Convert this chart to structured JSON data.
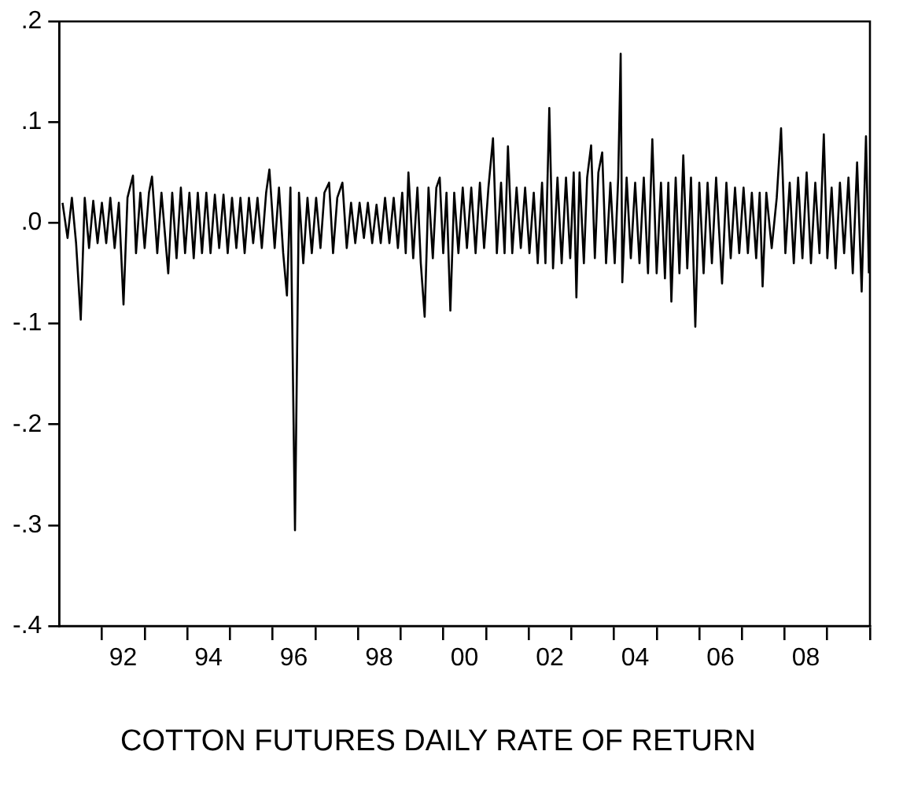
{
  "chart_data": {
    "type": "line",
    "title": "COTTON FUTURES DAILY RATE OF RETURN",
    "xlim": [
      "1991-01-01",
      "2010-01-01"
    ],
    "xticks": [
      {
        "value": "1992-01-01",
        "label": null
      },
      {
        "value": "1992-07-01",
        "label": "92"
      },
      {
        "value": "1993-01-01",
        "label": null
      },
      {
        "value": "1994-01-01",
        "label": null
      },
      {
        "value": "1994-07-01",
        "label": "94"
      },
      {
        "value": "1995-01-01",
        "label": null
      },
      {
        "value": "1996-01-01",
        "label": null
      },
      {
        "value": "1996-07-01",
        "label": "96"
      },
      {
        "value": "1997-01-01",
        "label": null
      },
      {
        "value": "1998-01-01",
        "label": null
      },
      {
        "value": "1998-07-01",
        "label": "98"
      },
      {
        "value": "1999-01-01",
        "label": null
      },
      {
        "value": "2000-01-01",
        "label": null
      },
      {
        "value": "2000-07-01",
        "label": "00"
      },
      {
        "value": "2001-01-01",
        "label": null
      },
      {
        "value": "2002-01-01",
        "label": null
      },
      {
        "value": "2002-07-01",
        "label": "02"
      },
      {
        "value": "2003-01-01",
        "label": null
      },
      {
        "value": "2004-01-01",
        "label": null
      },
      {
        "value": "2004-07-01",
        "label": "04"
      },
      {
        "value": "2005-01-01",
        "label": null
      },
      {
        "value": "2006-01-01",
        "label": null
      },
      {
        "value": "2006-07-01",
        "label": "06"
      },
      {
        "value": "2007-01-01",
        "label": null
      },
      {
        "value": "2008-01-01",
        "label": null
      },
      {
        "value": "2008-07-01",
        "label": "08"
      },
      {
        "value": "2009-01-01",
        "label": null
      },
      {
        "value": "2010-01-01",
        "label": null
      }
    ],
    "ylim": [
      -0.4,
      0.2
    ],
    "yticks": [
      {
        "value": -0.4,
        "label": "-.4"
      },
      {
        "value": -0.3,
        "label": "-.3"
      },
      {
        "value": -0.2,
        "label": "-.2"
      },
      {
        "value": -0.1,
        "label": "-.1"
      },
      {
        "value": 0,
        "label": ".0"
      },
      {
        "value": 0.1,
        "label": ".1"
      },
      {
        "value": 0.2,
        "label": ".2"
      }
    ],
    "legend": false,
    "marker": "none",
    "line_style": "solid",
    "series": [
      {
        "color": "#000000",
        "x": [
          "1991-01-29",
          "1991-03-13",
          "1991-04-19",
          "1991-05-25",
          "1991-07-04",
          "1991-08-07",
          "1991-09-13",
          "1991-10-19",
          "1991-11-25",
          "1992-01-01",
          "1992-02-07",
          "1992-03-13",
          "1992-04-19",
          "1992-05-25",
          "1992-07-04",
          "1992-08-07",
          "1992-09-23",
          "1992-10-19",
          "1992-11-25",
          "1993-01-01",
          "1993-02-07",
          "1993-03-05",
          "1993-04-19",
          "1993-05-25",
          "1993-07-22",
          "1993-08-25",
          "1993-10-01",
          "1993-11-07",
          "1993-12-13",
          "1994-01-19",
          "1994-02-25",
          "1994-04-01",
          "1994-05-07",
          "1994-06-13",
          "1994-07-19",
          "1994-08-25",
          "1994-10-01",
          "1994-11-07",
          "1994-12-13",
          "1995-01-19",
          "1995-02-25",
          "1995-04-01",
          "1995-05-07",
          "1995-06-13",
          "1995-07-19",
          "1995-08-25",
          "1995-10-01",
          "1995-11-07",
          "1995-12-05",
          "1996-01-19",
          "1996-02-25",
          "1996-04-01",
          "1996-05-03",
          "1996-06-02",
          "1996-07-11",
          "1996-08-14",
          "1996-09-20",
          "1996-10-26",
          "1996-12-02",
          "1997-01-08",
          "1997-02-14",
          "1997-03-20",
          "1997-04-29",
          "1997-06-02",
          "1997-07-08",
          "1997-08-21",
          "1997-09-27",
          "1997-11-03",
          "1997-12-09",
          "1998-01-15",
          "1998-02-21",
          "1998-03-27",
          "1998-05-03",
          "1998-06-09",
          "1998-07-15",
          "1998-08-21",
          "1998-09-27",
          "1998-11-03",
          "1998-12-09",
          "1999-01-15",
          "1999-02-14",
          "1999-03-09",
          "1999-04-19",
          "1999-05-25",
          "1999-06-23",
          "1999-07-26",
          "1999-08-28",
          "1999-10-04",
          "1999-11-03",
          "1999-12-02",
          "2000-01-01",
          "2000-01-29",
          "2000-03-02",
          "2000-04-04",
          "2000-05-10",
          "2000-06-16",
          "2000-07-22",
          "2000-08-28",
          "2000-10-04",
          "2000-11-10",
          "2000-12-16",
          "2001-01-22",
          "2001-03-02",
          "2001-04-04",
          "2001-05-10",
          "2001-06-09",
          "2001-07-08",
          "2001-08-14",
          "2001-09-20",
          "2001-10-26",
          "2001-12-02",
          "2002-01-08",
          "2002-02-14",
          "2002-03-20",
          "2002-04-26",
          "2002-05-25",
          "2002-06-27",
          "2002-07-29",
          "2002-09-05",
          "2002-10-11",
          "2002-11-17",
          "2002-12-23",
          "2003-01-22",
          "2003-02-14",
          "2003-03-13",
          "2003-04-19",
          "2003-05-17",
          "2003-06-20",
          "2003-07-22",
          "2003-08-21",
          "2003-09-23",
          "2003-10-26",
          "2003-12-02",
          "2004-01-08",
          "2004-02-07",
          "2004-02-28",
          "2004-03-13",
          "2004-04-19",
          "2004-05-25",
          "2004-07-01",
          "2004-08-07",
          "2004-09-13",
          "2004-10-19",
          "2004-11-25",
          "2005-01-01",
          "2005-02-07",
          "2005-03-13",
          "2005-04-11",
          "2005-05-07",
          "2005-06-13",
          "2005-07-15",
          "2005-08-17",
          "2005-09-20",
          "2005-10-22",
          "2005-11-28",
          "2006-01-01",
          "2006-02-07",
          "2006-03-13",
          "2006-04-19",
          "2006-05-25",
          "2006-07-15",
          "2006-08-21",
          "2006-09-27",
          "2006-11-03",
          "2006-12-09",
          "2007-01-15",
          "2007-02-21",
          "2007-03-27",
          "2007-05-03",
          "2007-06-02",
          "2007-06-27",
          "2007-07-29",
          "2007-09-13",
          "2007-10-26",
          "2007-12-02",
          "2008-01-08",
          "2008-02-14",
          "2008-03-20",
          "2008-04-26",
          "2008-06-02",
          "2008-07-08",
          "2008-08-14",
          "2008-09-20",
          "2008-10-26",
          "2008-12-02",
          "2009-01-01",
          "2009-02-07",
          "2009-03-13",
          "2009-04-19",
          "2009-05-25",
          "2009-07-01",
          "2009-08-07",
          "2009-09-13",
          "2009-10-22",
          "2009-11-28",
          "2009-12-23"
        ],
        "values": [
          0.02,
          -0.015,
          0.025,
          -0.02,
          -0.096,
          0.025,
          -0.025,
          0.022,
          -0.02,
          0.02,
          -0.02,
          0.025,
          -0.025,
          0.02,
          -0.081,
          0.025,
          0.047,
          -0.03,
          0.03,
          -0.025,
          0.03,
          0.046,
          -0.03,
          0.03,
          -0.05,
          0.03,
          -0.035,
          0.035,
          -0.03,
          0.03,
          -0.035,
          0.03,
          -0.03,
          0.03,
          -0.03,
          0.028,
          -0.025,
          0.028,
          -0.03,
          0.025,
          -0.025,
          0.025,
          -0.03,
          0.025,
          -0.02,
          0.025,
          -0.025,
          0.03,
          0.053,
          -0.025,
          0.035,
          -0.03,
          -0.072,
          0.035,
          -0.305,
          0.03,
          -0.04,
          0.025,
          -0.03,
          0.025,
          -0.025,
          0.03,
          0.04,
          -0.03,
          0.025,
          0.04,
          -0.025,
          0.02,
          -0.02,
          0.02,
          -0.015,
          0.02,
          -0.02,
          0.018,
          -0.02,
          0.025,
          -0.02,
          0.025,
          -0.025,
          0.03,
          -0.03,
          0.05,
          -0.035,
          0.035,
          -0.04,
          -0.093,
          0.035,
          -0.035,
          0.035,
          0.045,
          -0.03,
          0.03,
          -0.087,
          0.03,
          -0.03,
          0.035,
          -0.025,
          0.035,
          -0.03,
          0.04,
          -0.025,
          0.035,
          0.084,
          -0.03,
          0.04,
          -0.03,
          0.076,
          -0.03,
          0.035,
          -0.025,
          0.035,
          -0.03,
          0.03,
          -0.04,
          0.04,
          -0.04,
          0.114,
          -0.045,
          0.045,
          -0.04,
          0.045,
          -0.035,
          0.05,
          -0.074,
          0.05,
          -0.04,
          0.045,
          0.077,
          -0.035,
          0.05,
          0.07,
          -0.04,
          0.04,
          -0.04,
          0.045,
          0.168,
          -0.059,
          0.045,
          -0.035,
          0.04,
          -0.04,
          0.045,
          -0.05,
          0.083,
          -0.05,
          0.04,
          -0.055,
          0.04,
          -0.078,
          0.045,
          -0.05,
          0.067,
          -0.045,
          0.045,
          -0.103,
          0.04,
          -0.05,
          0.04,
          -0.04,
          0.045,
          -0.06,
          0.04,
          -0.035,
          0.035,
          -0.03,
          0.035,
          -0.03,
          0.03,
          -0.035,
          0.03,
          -0.063,
          0.03,
          -0.025,
          0.025,
          0.094,
          -0.03,
          0.04,
          -0.04,
          0.045,
          -0.035,
          0.05,
          -0.04,
          0.04,
          -0.03,
          0.088,
          -0.035,
          0.035,
          -0.045,
          0.04,
          -0.03,
          0.045,
          -0.05,
          0.06,
          -0.068,
          0.086,
          -0.05
        ]
      }
    ]
  }
}
